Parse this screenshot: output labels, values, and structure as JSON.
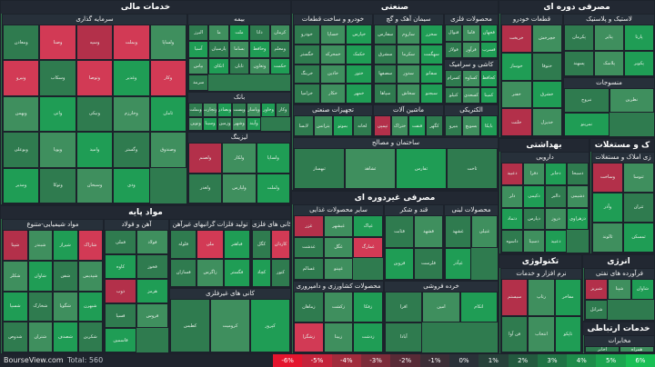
{
  "colors": {
    "up_strong": "#1f9d55",
    "up": "#2f7b4f",
    "up_light": "#3f8f5e",
    "down": "#b3304a",
    "down_strong": "#d23a55",
    "neutral": "#3a4a44"
  },
  "sections": [
    {
      "id": "financial",
      "title": "خدمات مالی",
      "subs": [
        {
          "title": "سرمایه گذاری",
          "tiles": [
            [
              "ومعادن",
              "u"
            ],
            [
              "وصنا",
              "d"
            ],
            [
              "وسپه",
              "d"
            ],
            [
              "وبملت",
              "d"
            ],
            [
              "ولساپا",
              "u"
            ],
            [
              "ونیرو",
              "d"
            ],
            [
              "وسکاب",
              "u"
            ],
            [
              "وتوصا",
              "d"
            ],
            [
              "وغدیر",
              "u"
            ],
            [
              "وکار",
              "d"
            ],
            [
              "وبهمن",
              "u"
            ],
            [
              "واتی",
              "u"
            ],
            [
              "ونیکی",
              "u"
            ],
            [
              "وخارزم",
              "u"
            ],
            [
              "ثامان",
              "u"
            ],
            [
              "وبوعلی",
              "u"
            ],
            [
              "وپویا",
              "u"
            ],
            [
              "وامید",
              "u"
            ],
            [
              "وگستر",
              "u"
            ],
            [
              "وصندوق",
              "u"
            ],
            [
              "ومدیر",
              "u"
            ],
            [
              "وتوکا",
              "u"
            ],
            [
              "وسبحان",
              "u"
            ],
            [
              "ودی",
              "u"
            ]
          ]
        },
        {
          "title": "بیمه",
          "tiles": [
            [
              "البرز",
              "u"
            ],
            [
              "ما",
              "u"
            ],
            [
              "ملت",
              "u"
            ],
            [
              "دانا",
              "u"
            ],
            [
              "کرمان",
              "u"
            ],
            [
              "آسیا",
              "u"
            ],
            [
              "پارسیان",
              "u"
            ],
            [
              "بساما",
              "u"
            ],
            [
              "وحافظ",
              "u"
            ],
            [
              "ومعلم",
              "u"
            ],
            [
              "بپاس",
              "u"
            ],
            [
              "اتکای",
              "u"
            ],
            [
              "تابان",
              "u"
            ],
            [
              "وتعاون",
              "u"
            ],
            [
              "حکمت",
              "u"
            ],
            [
              "سرمد",
              "u"
            ]
          ]
        },
        {
          "title": "بانک",
          "tiles": [
            [
              "وبملت",
              "u"
            ],
            [
              "وتجارت",
              "u"
            ],
            [
              "وبصادر",
              "u"
            ],
            [
              "وپست",
              "u"
            ],
            [
              "وپاسار",
              "u"
            ],
            [
              "وخاور",
              "u"
            ],
            [
              "وکار",
              "u"
            ],
            [
              "ونوین",
              "u"
            ],
            [
              "وسینا",
              "u"
            ],
            [
              "وزمین",
              "u"
            ],
            [
              "وشهر",
              "u"
            ],
            [
              "وآیند",
              "u"
            ]
          ]
        },
        {
          "title": "لیزینگ",
          "tiles": [
            [
              "ولصنم",
              "d"
            ],
            [
              "ولکار",
              "u"
            ],
            [
              "ولساپا",
              "u"
            ],
            [
              "ولغدر",
              "u"
            ],
            [
              "ولپارس",
              "u"
            ],
            [
              "ولملت",
              "u"
            ]
          ]
        }
      ]
    },
    {
      "id": "industrial",
      "title": "صنعتی",
      "subs": [
        {
          "title": "خودرو و ساخت قطعات",
          "tiles": [
            [
              "خودرو",
              "u"
            ],
            [
              "خساپا",
              "u"
            ],
            [
              "خپارس",
              "u"
            ],
            [
              "خگستر",
              "u"
            ],
            [
              "خمحرکه",
              "u"
            ],
            [
              "خکمک",
              "u"
            ],
            [
              "خرینگ",
              "u"
            ],
            [
              "خاذین",
              "u"
            ],
            [
              "ختور",
              "u"
            ],
            [
              "خزامیا",
              "u"
            ],
            [
              "خکار",
              "u"
            ],
            [
              "خمهر",
              "u"
            ]
          ]
        },
        {
          "title": "سیمان آهک و گچ",
          "tiles": [
            [
              "سفارس",
              "u"
            ],
            [
              "ساروم",
              "u"
            ],
            [
              "سخزر",
              "u"
            ],
            [
              "سشرق",
              "u"
            ],
            [
              "سکرما",
              "u"
            ],
            [
              "سهگمت",
              "u"
            ],
            [
              "سصفها",
              "u"
            ],
            [
              "سدور",
              "u"
            ],
            [
              "سفانو",
              "u"
            ],
            [
              "سپاها",
              "u"
            ],
            [
              "سخاش",
              "u"
            ],
            [
              "سبجنو",
              "u"
            ]
          ]
        },
        {
          "title": "محصولات فلزی",
          "tiles": [
            [
              "فنوال",
              "u"
            ],
            [
              "فاما",
              "u"
            ],
            [
              "فجهان",
              "u"
            ],
            [
              "فولاژ",
              "u"
            ],
            [
              "فرآور",
              "u"
            ],
            [
              "فسرب",
              "u"
            ]
          ]
        },
        {
          "title": "کاشی و سرامیک",
          "tiles": [
            [
              "کسرام",
              "u"
            ],
            [
              "کساوه",
              "u"
            ],
            [
              "کحافظ",
              "u"
            ],
            [
              "کنیلو",
              "u"
            ],
            [
              "کسعدی",
              "u"
            ],
            [
              "کمینا",
              "u"
            ]
          ]
        },
        {
          "title": "تجهیزات صنعتی",
          "tiles": [
            [
              "لابسا",
              "u"
            ],
            [
              "بترانس",
              "u"
            ],
            [
              "بموتو",
              "u"
            ],
            [
              "لخانه",
              "u"
            ]
          ]
        },
        {
          "title": "ماشین آلات",
          "tiles": [
            [
              "تپمپی",
              "d"
            ],
            [
              "ختراک",
              "u"
            ],
            [
              "فنفت",
              "u"
            ],
            [
              "کگهر",
              "u"
            ]
          ]
        },
        {
          "title": "الکتریکی",
          "tiles": [
            [
              "بنیرو",
              "u"
            ],
            [
              "بسویچ",
              "u"
            ],
            [
              "بایکا",
              "u"
            ]
          ]
        },
        {
          "title": "ساختمان و مصالح",
          "tiles": [
            [
              "ثبهساز",
              "u"
            ],
            [
              "ثشاهد",
              "u"
            ],
            [
              "ثفارس",
              "u"
            ],
            [
              "ثاخت",
              "u"
            ]
          ]
        }
      ]
    },
    {
      "id": "consumer",
      "title": "مصرفی دوره ای",
      "subs": [
        {
          "title": "لاستیک و پلاستیک",
          "tiles": [
            [
              "پکرمان",
              "u"
            ],
            [
              "پتایر",
              "u"
            ],
            [
              "پارتا",
              "u"
            ],
            [
              "پسهند",
              "u"
            ],
            [
              "پلاسک",
              "u"
            ],
            [
              "پکویر",
              "u"
            ]
          ]
        },
        {
          "title": "قطعات خودرو",
          "tiles": [
            [
              "خریخت",
              "d"
            ],
            [
              "خچرخش",
              "u"
            ],
            [
              "خوساز",
              "u"
            ],
            [
              "ختوقا",
              "u"
            ],
            [
              "خفنر",
              "u"
            ],
            [
              "خشرق",
              "u"
            ],
            [
              "خلنت",
              "d"
            ],
            [
              "خدیزل",
              "u"
            ]
          ]
        },
        {
          "title": "منسوجات",
          "tiles": [
            [
              "نبروج",
              "u"
            ],
            [
              "نطرین",
              "u"
            ],
            [
              "نمرینو",
              "u"
            ]
          ]
        }
      ]
    },
    {
      "id": "health",
      "title": "بهداشتی",
      "subs": [
        {
          "title": "دارویی",
          "tiles": [
            [
              "دعبید",
              "d"
            ],
            [
              "دفرا",
              "u"
            ],
            [
              "دجابر",
              "u"
            ],
            [
              "دسبحا",
              "u"
            ],
            [
              "دلر",
              "u"
            ],
            [
              "دکیمی",
              "u"
            ],
            [
              "دالبر",
              "u"
            ],
            [
              "دشیمی",
              "u"
            ],
            [
              "دتماد",
              "u"
            ],
            [
              "دپارس",
              "u"
            ],
            [
              "دروز",
              "u"
            ],
            [
              "دزهراوی",
              "u"
            ],
            [
              "داسوه",
              "u"
            ],
            [
              "دسینا",
              "u"
            ],
            [
              "دعبید",
              "u"
            ]
          ]
        }
      ]
    },
    {
      "id": "realestate",
      "title": "ک و مستغلات",
      "subs": [
        {
          "title": "زی املاک و مستغلات",
          "tiles": [
            [
              "وساخت",
              "d"
            ],
            [
              "ثنوسا",
              "u"
            ],
            [
              "وآذر",
              "u"
            ],
            [
              "ثتران",
              "u"
            ],
            [
              "ثالوند",
              "u"
            ],
            [
              "ثمسکن",
              "u"
            ]
          ]
        }
      ]
    },
    {
      "id": "basic",
      "title": "مواد پایه",
      "subs": [
        {
          "title": "مواد شیمیایی-متنوع",
          "tiles": [
            [
              "شپنا",
              "d"
            ],
            [
              "شبندر",
              "u"
            ],
            [
              "شیراز",
              "u"
            ],
            [
              "شاراک",
              "d"
            ],
            [
              "شکلر",
              "u"
            ],
            [
              "شاوان",
              "u"
            ],
            [
              "شفن",
              "u"
            ],
            [
              "شپدیس",
              "u"
            ],
            [
              "شسپا",
              "u"
            ],
            [
              "شخارک",
              "u"
            ],
            [
              "شگویا",
              "u"
            ],
            [
              "شبهرن",
              "u"
            ],
            [
              "شدوص",
              "u"
            ],
            [
              "شتران",
              "u"
            ],
            [
              "شصدف",
              "u"
            ],
            [
              "شکربن",
              "u"
            ]
          ]
        },
        {
          "title": "آهن و فولاد",
          "tiles": [
            [
              "فملی",
              "u"
            ],
            [
              "فولاد",
              "u"
            ],
            [
              "کاوه",
              "u"
            ],
            [
              "فخوز",
              "u"
            ],
            [
              "ذوب",
              "d"
            ],
            [
              "هرمز",
              "u"
            ],
            [
              "فسپا",
              "u"
            ],
            [
              "فروس",
              "u"
            ],
            [
              "فاسمین",
              "u"
            ]
          ]
        },
        {
          "title": "تولید فلزات گرانبهای غیرآهن",
          "tiles": [
            [
              "فلوله",
              "u"
            ],
            [
              "ملی",
              "d"
            ],
            [
              "فباهنر",
              "u"
            ],
            [
              "فسازان",
              "u"
            ],
            [
              "زاگرس",
              "u"
            ],
            [
              "فگستر",
              "u"
            ]
          ]
        },
        {
          "title": "کانی های فلزی",
          "tiles": [
            [
              "کگل",
              "u"
            ],
            [
              "کاردان",
              "d"
            ],
            [
              "کچاد",
              "u"
            ],
            [
              "کنور",
              "u"
            ]
          ]
        },
        {
          "title": "کانی های غیرفلزی",
          "tiles": [
            [
              "کطبس",
              "u"
            ],
            [
              "کرومیت",
              "u"
            ],
            [
              "کپرور",
              "u"
            ]
          ]
        }
      ]
    },
    {
      "id": "noncycle",
      "title": "مصرفی غیردوره ای",
      "subs": [
        {
          "title": "سایر محصولات غذایی",
          "tiles": [
            [
              "غزر",
              "d"
            ],
            [
              "غبشهر",
              "u"
            ],
            [
              "غپاک",
              "u"
            ],
            [
              "غدشت",
              "u"
            ],
            [
              "غگل",
              "u"
            ],
            [
              "غمارگ",
              "d"
            ],
            [
              "غسالم",
              "u"
            ],
            [
              "غپینو",
              "u"
            ]
          ]
        },
        {
          "title": "قند و شکر",
          "tiles": [
            [
              "قثابت",
              "u"
            ],
            [
              "قشهد",
              "u"
            ],
            [
              "قزوین",
              "u"
            ],
            [
              "قلرست",
              "u"
            ]
          ]
        },
        {
          "title": "محصولات لبنی",
          "tiles": [
            [
              "غشهد",
              "u"
            ],
            [
              "غنیلی",
              "u"
            ],
            [
              "غپآذر",
              "u"
            ]
          ]
        },
        {
          "title": "محصولات کشاورزی و دامپروری",
          "tiles": [
            [
              "زماهان",
              "u"
            ],
            [
              "زکشت",
              "u"
            ],
            [
              "زفکا",
              "u"
            ],
            [
              "زشگزا",
              "d"
            ],
            [
              "زبینا",
              "u"
            ],
            [
              "زدشت",
              "u"
            ]
          ]
        },
        {
          "title": "خرده فروشی",
          "tiles": [
            [
              "افرا",
              "u"
            ],
            [
              "امین",
              "u"
            ],
            [
              "اتکام",
              "u"
            ],
            [
              "آبادا",
              "u"
            ]
          ]
        }
      ]
    },
    {
      "id": "tech",
      "title": "تکنولوژی",
      "subs": [
        {
          "title": "نرم افزار و خدمات",
          "tiles": [
            [
              "سیستم",
              "d"
            ],
            [
              "رتاپ",
              "u"
            ],
            [
              "مفاخر",
              "u"
            ],
            [
              "فن آوا",
              "u"
            ],
            [
              "انتخاب",
              "u"
            ],
            [
              "تاپکو",
              "u"
            ]
          ]
        }
      ]
    },
    {
      "id": "energy",
      "title": "انرژی",
      "subs": [
        {
          "title": "فرآورده های نفتی",
          "tiles": [
            [
              "شبریز",
              "d"
            ],
            [
              "شپنا",
              "u"
            ],
            [
              "شاوان",
              "u"
            ],
            [
              "شرانل",
              "u"
            ]
          ]
        }
      ]
    },
    {
      "id": "telecom",
      "title": "خدمات ارتباطی",
      "subs": [
        {
          "title": "مخابرات",
          "tiles": [
            [
              "اخابر",
              "u"
            ],
            [
              "همراه",
              "u"
            ]
          ]
        }
      ]
    }
  ],
  "footer": {
    "site": "BourseView.com",
    "total_label": "Total: 560"
  },
  "legend": [
    "-6%",
    "-5%",
    "-4%",
    "-3%",
    "-2%",
    "-1%",
    "0%",
    "1%",
    "2%",
    "3%",
    "4%",
    "5%",
    "6%"
  ],
  "legend_colors": [
    "#e4152e",
    "#c4233b",
    "#a12b3c",
    "#7c2b39",
    "#582a36",
    "#3c2e36",
    "#2a3138",
    "#27413a",
    "#235a3f",
    "#207345",
    "#1e8c4a",
    "#1ca550",
    "#19bf55"
  ]
}
